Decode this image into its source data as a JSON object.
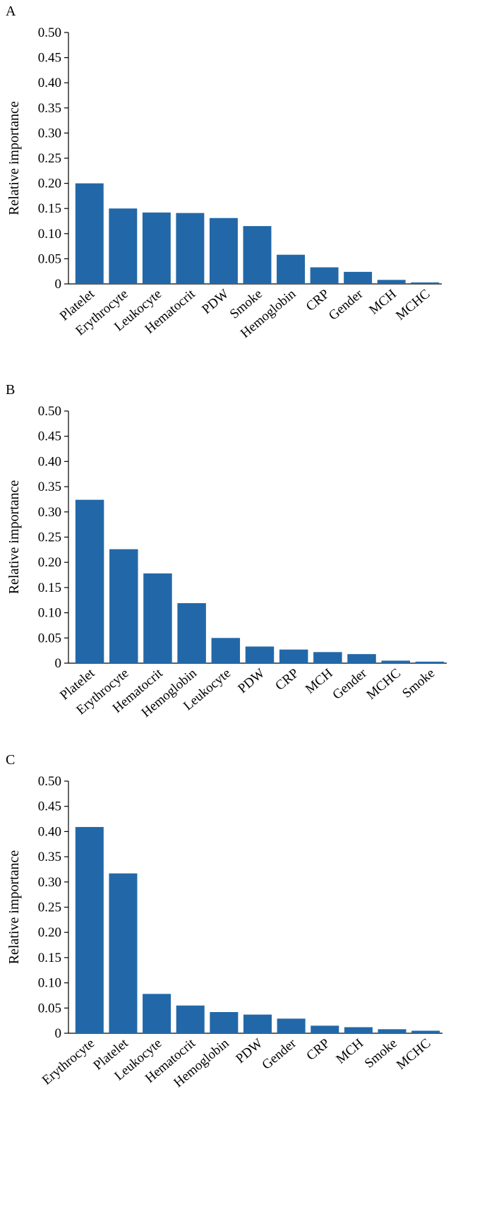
{
  "colors": {
    "bar": "#2268a8",
    "axis": "#000000"
  },
  "chart_data": [
    {
      "panel": "A",
      "type": "bar",
      "ylabel": "Relative importance",
      "ylim": [
        0,
        0.5
      ],
      "yticks": [
        0,
        0.05,
        0.1,
        0.15,
        0.2,
        0.25,
        0.3,
        0.35,
        0.4,
        0.45,
        0.5
      ],
      "ytick_labels": [
        "0",
        "0.05",
        "0.10",
        "0.15",
        "0.20",
        "0.25",
        "0.30",
        "0.35",
        "0.40",
        "0.45",
        "0.50"
      ],
      "categories": [
        "Platelet",
        "Erythrocyte",
        "Leukocyte",
        "Hematocrit",
        "PDW",
        "Smoke",
        "Hemoglobin",
        "CRP",
        "Gender",
        "MCH",
        "MCHC"
      ],
      "values": [
        0.2,
        0.15,
        0.142,
        0.141,
        0.131,
        0.115,
        0.058,
        0.033,
        0.024,
        0.008,
        0.003
      ],
      "grid": false
    },
    {
      "panel": "B",
      "type": "bar",
      "ylabel": "Relative importance",
      "ylim": [
        0,
        0.5
      ],
      "yticks": [
        0,
        0.05,
        0.1,
        0.15,
        0.2,
        0.25,
        0.3,
        0.35,
        0.4,
        0.45,
        0.5
      ],
      "ytick_labels": [
        "0",
        "0.05",
        "0.10",
        "0.15",
        "0.20",
        "0.25",
        "0.30",
        "0.35",
        "0.40",
        "0.45",
        "0.50"
      ],
      "categories": [
        "Platelet",
        "Erythrocyte",
        "Hematocrit",
        "Hemoglobin",
        "Leukocyte",
        "PDW",
        "CRP",
        "MCH",
        "Gender",
        "MCHC",
        "Smoke"
      ],
      "values": [
        0.324,
        0.226,
        0.178,
        0.119,
        0.05,
        0.033,
        0.027,
        0.022,
        0.018,
        0.005,
        0.003
      ],
      "grid": false
    },
    {
      "panel": "C",
      "type": "bar",
      "ylabel": "Relative importance",
      "ylim": [
        0,
        0.5
      ],
      "yticks": [
        0,
        0.05,
        0.1,
        0.15,
        0.2,
        0.25,
        0.3,
        0.35,
        0.4,
        0.45,
        0.5
      ],
      "ytick_labels": [
        "0",
        "0.05",
        "0.10",
        "0.15",
        "0.20",
        "0.25",
        "0.30",
        "0.35",
        "0.40",
        "0.45",
        "0.50"
      ],
      "categories": [
        "Erythrocyte",
        "Platelet",
        "Leukocyte",
        "Hematocrit",
        "Hemoglobin",
        "PDW",
        "Gender",
        "CRP",
        "MCH",
        "Smoke",
        "MCHC"
      ],
      "values": [
        0.409,
        0.317,
        0.078,
        0.055,
        0.042,
        0.037,
        0.029,
        0.015,
        0.012,
        0.008,
        0.005
      ],
      "grid": false
    }
  ]
}
